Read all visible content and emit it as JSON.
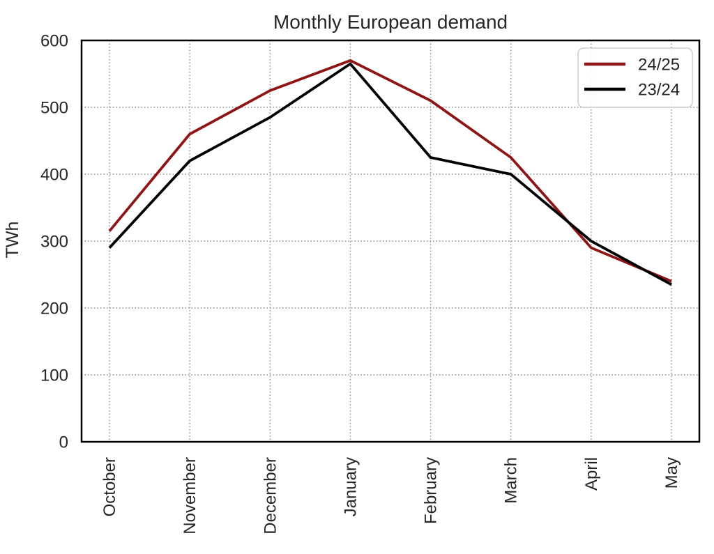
{
  "chart_data": {
    "type": "line",
    "title": "Monthly European demand",
    "xlabel": "",
    "ylabel": "TWh",
    "categories": [
      "October",
      "November",
      "December",
      "January",
      "February",
      "March",
      "April",
      "May"
    ],
    "series": [
      {
        "name": "24/25",
        "color": "#8e1515",
        "values": [
          315,
          460,
          525,
          570,
          510,
          425,
          290,
          240
        ]
      },
      {
        "name": "23/24",
        "color": "#000000",
        "values": [
          290,
          420,
          485,
          565,
          425,
          400,
          300,
          235
        ]
      }
    ],
    "ylim": [
      0,
      600
    ],
    "yticks": [
      0,
      100,
      200,
      300,
      400,
      500,
      600
    ],
    "grid": "dotted",
    "legend_position": "upper right",
    "colors": {
      "grid": "#8c8c8c",
      "spine": "#000000",
      "text": "#262626",
      "legend_border": "#cccccc",
      "legend_fill": "#ffffff"
    }
  }
}
